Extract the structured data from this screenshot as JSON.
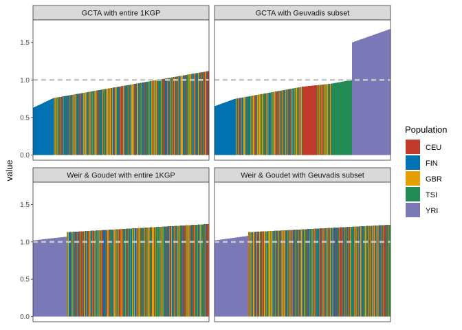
{
  "chart_data": {
    "type": "bar",
    "layout": "facet-grid-2x2",
    "ylabel": "value",
    "xlabel": "",
    "ylim": [
      0,
      1.8
    ],
    "y_ticks": [
      0.0,
      0.5,
      1.0,
      1.5
    ],
    "y_tick_labels": [
      "0.0",
      "0.5",
      "1.0",
      "1.5"
    ],
    "reference_line": {
      "y": 1.0,
      "style": "dashed",
      "color": "#c8c8c8"
    },
    "legend": {
      "title": "Population",
      "position": "right",
      "entries": [
        {
          "name": "CEU",
          "color": "#C0392B"
        },
        {
          "name": "FIN",
          "color": "#0072B2"
        },
        {
          "name": "GBR",
          "color": "#E69F00"
        },
        {
          "name": "TSI",
          "color": "#228B55"
        },
        {
          "name": "YRI",
          "color": "#7B78B8"
        }
      ]
    },
    "panels": [
      {
        "title": "GCTA with entire 1KGP",
        "bar_count": 420,
        "segments": [
          {
            "fraction": 0.12,
            "mode": "solid",
            "population": "FIN",
            "from": 0.63,
            "to": 0.76
          },
          {
            "fraction": 0.88,
            "mode": "mixed",
            "populations": [
              "CEU",
              "FIN",
              "GBR",
              "TSI"
            ],
            "from": 0.76,
            "to": 1.12
          }
        ]
      },
      {
        "title": "GCTA with Geuvadis subset",
        "bar_count": 420,
        "segments": [
          {
            "fraction": 0.12,
            "mode": "solid",
            "population": "FIN",
            "from": 0.65,
            "to": 0.75
          },
          {
            "fraction": 0.38,
            "mode": "mixed",
            "populations": [
              "FIN",
              "GBR",
              "CEU",
              "TSI"
            ],
            "from": 0.75,
            "to": 0.91
          },
          {
            "fraction": 0.08,
            "mode": "solid",
            "population": "CEU",
            "from": 0.91,
            "to": 0.93
          },
          {
            "fraction": 0.08,
            "mode": "mixed",
            "populations": [
              "TSI",
              "CEU",
              "GBR"
            ],
            "from": 0.93,
            "to": 0.95
          },
          {
            "fraction": 0.12,
            "mode": "solid",
            "population": "TSI",
            "from": 0.95,
            "to": 1.0
          },
          {
            "fraction": 0.22,
            "mode": "solid",
            "population": "YRI",
            "from": 1.5,
            "to": 1.68
          }
        ]
      },
      {
        "title": "Weir & Goudet with entire 1KGP",
        "bar_count": 420,
        "segments": [
          {
            "fraction": 0.19,
            "mode": "solid",
            "population": "YRI",
            "from": 1.02,
            "to": 1.07
          },
          {
            "fraction": 0.81,
            "mode": "mixed",
            "populations": [
              "TSI",
              "FIN",
              "GBR",
              "CEU"
            ],
            "from": 1.13,
            "to": 1.24
          }
        ]
      },
      {
        "title": "Weir & Goudet with Geuvadis subset",
        "bar_count": 420,
        "segments": [
          {
            "fraction": 0.19,
            "mode": "solid",
            "population": "YRI",
            "from": 1.02,
            "to": 1.08
          },
          {
            "fraction": 0.81,
            "mode": "mixed",
            "populations": [
              "TSI",
              "FIN",
              "GBR",
              "CEU"
            ],
            "from": 1.13,
            "to": 1.23
          }
        ]
      }
    ]
  }
}
